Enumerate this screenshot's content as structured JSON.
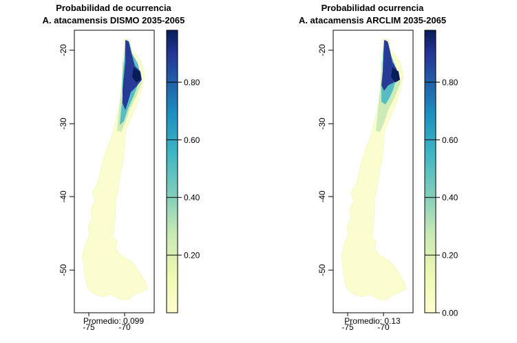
{
  "chart_data": [
    {
      "type": "heatmap",
      "title_line1": "Probabilidad de ocurrencia",
      "title_line2": "A. atacamensis DISMO 2035-2065",
      "x_ticks": [
        -75,
        -70
      ],
      "x_tick_labels": [
        "-75",
        "-70"
      ],
      "y_ticks": [
        -20,
        -30,
        -40,
        -50
      ],
      "y_tick_labels": [
        "-20",
        "-30",
        "-40",
        "-50"
      ],
      "ylim": [
        -56,
        -17.5
      ],
      "xlim": [
        -77.5,
        -65.2
      ],
      "colorbar": {
        "range": [
          0.0,
          0.98
        ],
        "ticks": [
          0.2,
          0.4,
          0.6,
          0.8
        ],
        "tick_labels": [
          "0.20",
          "0.40",
          "0.60",
          "0.80"
        ],
        "palette": [
          "#ffffcc",
          "#c7e9b4",
          "#7fcdbb",
          "#41b6c4",
          "#1d91c0",
          "#225ea8",
          "#253494",
          "#081d58"
        ]
      },
      "mean_label": "Promedio: 0.099",
      "region": "Chile",
      "grid": false
    },
    {
      "type": "heatmap",
      "title_line1": "Probabilidad ocurrencia",
      "title_line2": "A. atacamensis ARCLIM 2035-2065",
      "x_ticks": [
        -75,
        -70
      ],
      "x_tick_labels": [
        "-75",
        "-70"
      ],
      "y_ticks": [
        -20,
        -30,
        -40,
        -50
      ],
      "y_tick_labels": [
        "-20",
        "-30",
        "-40",
        "-50"
      ],
      "ylim": [
        -56,
        -17.5
      ],
      "xlim": [
        -77.5,
        -65.2
      ],
      "colorbar": {
        "range": [
          0.0,
          0.98
        ],
        "ticks": [
          0.0,
          0.2,
          0.4,
          0.6,
          0.8
        ],
        "tick_labels": [
          "0.00",
          "0.20",
          "0.40",
          "0.60",
          "0.80"
        ],
        "palette": [
          "#ffffcc",
          "#c7e9b4",
          "#7fcdbb",
          "#41b6c4",
          "#1d91c0",
          "#225ea8",
          "#253494",
          "#081d58"
        ]
      },
      "mean_label": "Promedio: 0.13",
      "region": "Chile",
      "grid": false
    }
  ]
}
